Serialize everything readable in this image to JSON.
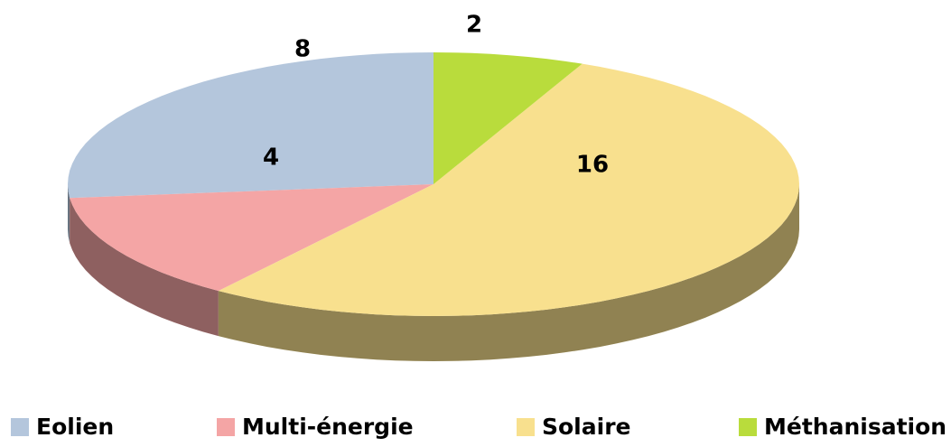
{
  "chart_data": {
    "type": "pie",
    "categories": [
      "Eolien",
      "Multi-énergie",
      "Solaire",
      "Méthanisation"
    ],
    "values": [
      8,
      4,
      16,
      2
    ],
    "colors": [
      "#b4c6dc",
      "#f4a5a5",
      "#f8e08e",
      "#b9dc3c"
    ],
    "legend": "bottom"
  }
}
